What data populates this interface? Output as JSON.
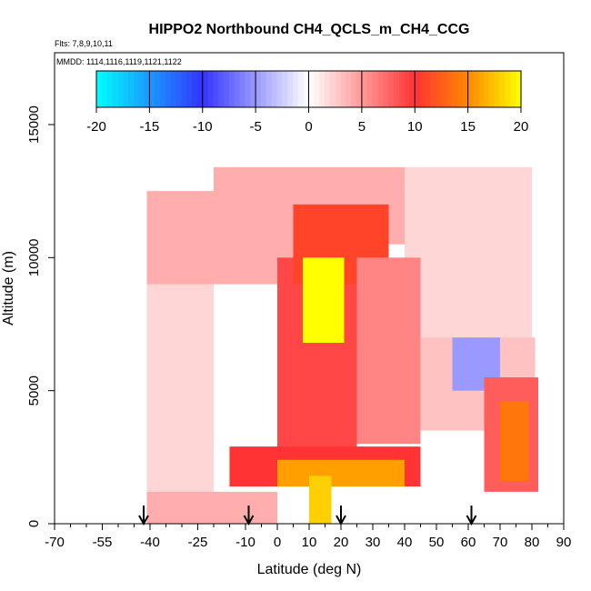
{
  "chart_data": {
    "type": "heatmap",
    "title": "HIPPO2 Northbound CH4_QCLS_m_CH4_CCG",
    "flights_label": "Flts: 7,8,9,10,11",
    "dates_label": "MMDD: 1114,1116,1119,1121,1122",
    "xlabel": "Latitude (deg N)",
    "ylabel": "Altitude (m)",
    "xlim": [
      -70,
      90
    ],
    "ylim": [
      0,
      17700
    ],
    "x_tick_labels": [
      "-70",
      "-55",
      "-40",
      "-25",
      "-10",
      "0",
      "10",
      "20",
      "30",
      "40",
      "50",
      "60",
      "70",
      "80",
      "90"
    ],
    "x_ticks": [
      -70,
      -55,
      -40,
      -25,
      -10,
      0,
      10,
      20,
      30,
      40,
      50,
      60,
      70,
      80,
      90
    ],
    "y_ticks": [
      0,
      5000,
      10000,
      15000
    ],
    "y_tick_labels": [
      "0",
      "5000",
      "10000",
      "15000"
    ],
    "colorbar": {
      "range": [
        -20,
        20
      ],
      "tick_labels": [
        "-20",
        "-15",
        "-10",
        "-5",
        "0",
        "5",
        "10",
        "15",
        "20"
      ],
      "ticks": [
        -20,
        -15,
        -10,
        -5,
        0,
        5,
        10,
        15,
        20
      ]
    },
    "profile_arrows_lat": [
      -42,
      -9,
      20,
      61
    ],
    "field_description": "Gridded difference field (values -20 to 20) over latitude and altitude",
    "regions": [
      {
        "name": "background_south_low",
        "lat": [
          -41,
          -20
        ],
        "alt": [
          0,
          12500
        ],
        "value": 2
      },
      {
        "name": "upper_south",
        "lat": [
          -41,
          5
        ],
        "alt": [
          9000,
          12500
        ],
        "value": 4
      },
      {
        "name": "upper_band",
        "lat": [
          -20,
          40
        ],
        "alt": [
          10500,
          13400
        ],
        "value": 4
      },
      {
        "name": "upper_north",
        "lat": [
          40,
          80
        ],
        "alt": [
          6500,
          13400
        ],
        "value": 2
      },
      {
        "name": "mid_north",
        "lat": [
          42,
          81
        ],
        "alt": [
          3500,
          7000
        ],
        "value": 3
      },
      {
        "name": "negative_patch",
        "lat": [
          55,
          70
        ],
        "alt": [
          5000,
          7000
        ],
        "value": -5
      },
      {
        "name": "central_plume_low",
        "lat": [
          0,
          25
        ],
        "alt": [
          2500,
          10000
        ],
        "value": 9
      },
      {
        "name": "central_plume_upper",
        "lat": [
          5,
          35
        ],
        "alt": [
          9000,
          12000
        ],
        "value": 11
      },
      {
        "name": "core_max",
        "lat": [
          8,
          21
        ],
        "alt": [
          6800,
          10000
        ],
        "value": 20
      },
      {
        "name": "diag_band",
        "lat": [
          25,
          45
        ],
        "alt": [
          3000,
          10000
        ],
        "value": 6
      },
      {
        "name": "low_band",
        "lat": [
          -15,
          45
        ],
        "alt": [
          1400,
          2900
        ],
        "value": 10
      },
      {
        "name": "low_core",
        "lat": [
          0,
          40
        ],
        "alt": [
          1400,
          2400
        ],
        "value": 16
      },
      {
        "name": "surface_south",
        "lat": [
          -41,
          0
        ],
        "alt": [
          0,
          1200
        ],
        "value": 4
      },
      {
        "name": "surface_band",
        "lat": [
          10,
          17
        ],
        "alt": [
          0,
          1800
        ],
        "value": 18
      },
      {
        "name": "north_wedge",
        "lat": [
          65,
          82
        ],
        "alt": [
          1200,
          5500
        ],
        "value": 8
      },
      {
        "name": "north_wedge_core",
        "lat": [
          70,
          79
        ],
        "alt": [
          1600,
          4600
        ],
        "value": 14
      }
    ]
  },
  "colors": {
    "neg_max": "#00ffff",
    "neg_mid": "#3333ff",
    "zero": "#ffffff",
    "pos_low": "#ff3333",
    "pos_mid": "#ff8800",
    "pos_max": "#ffff00"
  }
}
